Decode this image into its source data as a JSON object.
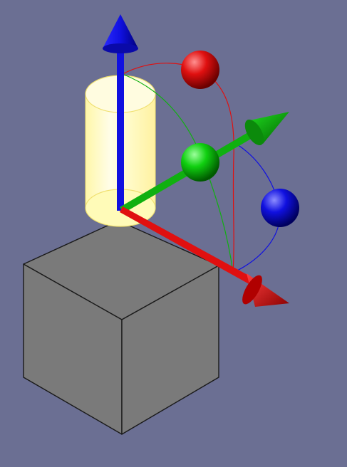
{
  "viewport": {
    "background": "#6b6f93"
  },
  "colors": {
    "box_face": "#7a7a7a",
    "box_edge": "#1a1a1a",
    "cylinder_fill": "#fffbb8",
    "cylinder_edge": "#f0e070",
    "axis_x": "#e01010",
    "axis_y": "#10b010",
    "axis_z": "#1010e0",
    "handle_x": "#e01010",
    "handle_y": "#10d010",
    "handle_z": "#1010e0"
  },
  "objects": [
    {
      "id": "box",
      "shape": "cube-icon",
      "selected": false
    },
    {
      "id": "cylinder",
      "shape": "cylinder-icon",
      "selected": true
    }
  ],
  "gizmo": {
    "axes": [
      {
        "axis": "x",
        "icon": "arrow-x-icon"
      },
      {
        "axis": "y",
        "icon": "arrow-y-icon"
      },
      {
        "axis": "z",
        "icon": "arrow-z-icon"
      }
    ],
    "rotation_handles": [
      {
        "axis": "x",
        "icon": "sphere-icon"
      },
      {
        "axis": "y",
        "icon": "sphere-icon"
      },
      {
        "axis": "z",
        "icon": "sphere-icon"
      }
    ]
  }
}
